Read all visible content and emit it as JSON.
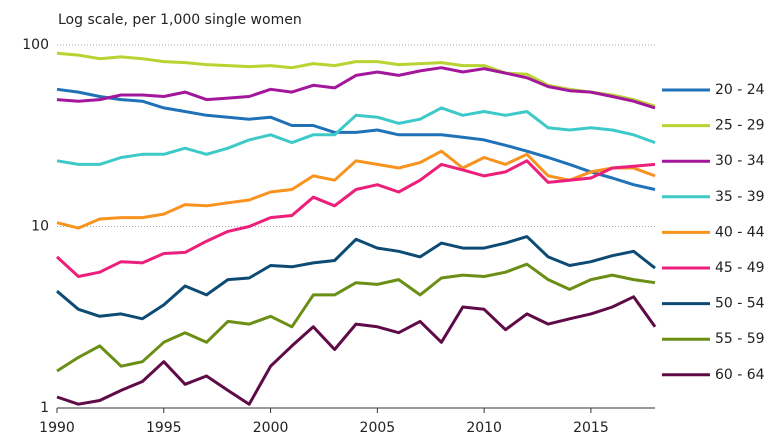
{
  "chart_data": {
    "type": "line",
    "ylabel": "Log scale, per 1,000 single women",
    "x": [
      1990,
      1991,
      1992,
      1993,
      1994,
      1995,
      1996,
      1997,
      1998,
      1999,
      2000,
      2001,
      2002,
      2003,
      2004,
      2005,
      2006,
      2007,
      2008,
      2009,
      2010,
      2011,
      2012,
      2013,
      2014,
      2015,
      2016,
      2017,
      2018
    ],
    "xlim": [
      1990,
      2018
    ],
    "xticks": [
      1990,
      1995,
      2000,
      2005,
      2010,
      2015
    ],
    "ylim": [
      1,
      100
    ],
    "yticks": [
      1,
      10,
      100
    ],
    "log_y": true,
    "grid": true,
    "legend": "right",
    "series": [
      {
        "name": "20 - 24",
        "color": "#1f72b8",
        "values": [
          57,
          55,
          52,
          50,
          49,
          45,
          43,
          41,
          40,
          39,
          40,
          36,
          36,
          33,
          33,
          34,
          32,
          32,
          32,
          31,
          30,
          28,
          26,
          24,
          22,
          20,
          18.5,
          17,
          16
        ]
      },
      {
        "name": "25 - 29",
        "color": "#b7d432",
        "values": [
          90,
          88,
          84,
          86,
          84,
          81,
          80,
          78,
          77,
          76,
          77,
          75,
          79,
          77,
          81,
          81,
          78,
          79,
          80,
          77,
          77,
          70,
          69,
          60,
          57,
          55,
          53,
          50,
          46
        ]
      },
      {
        "name": "30 - 34",
        "color": "#a3179c",
        "values": [
          50,
          49,
          50,
          53,
          53,
          52,
          55,
          50,
          51,
          52,
          57,
          55,
          60,
          58,
          68,
          71,
          68,
          72,
          75,
          71,
          74,
          70,
          66,
          59,
          56,
          55,
          52,
          49,
          45
        ]
      },
      {
        "name": "35 - 39",
        "color": "#3ec9c9",
        "values": [
          23,
          22,
          22,
          24,
          25,
          25,
          27,
          25,
          27,
          30,
          32,
          29,
          32,
          32,
          41,
          40,
          37,
          39,
          45,
          41,
          43,
          41,
          43,
          35,
          34,
          35,
          34,
          32,
          29
        ]
      },
      {
        "name": "40 - 44",
        "color": "#f7931e",
        "values": [
          10.5,
          9.8,
          11,
          11.2,
          11.2,
          11.7,
          13.2,
          13,
          13.5,
          14,
          15.5,
          16,
          19,
          18,
          23,
          22,
          21,
          22.5,
          26,
          21,
          24,
          22,
          25,
          19,
          18,
          20,
          21,
          21,
          19
        ]
      },
      {
        "name": "45 - 49",
        "color": "#ec1f7b",
        "values": [
          6.8,
          5.3,
          5.6,
          6.4,
          6.3,
          7.1,
          7.2,
          8.3,
          9.4,
          10,
          11.2,
          11.5,
          14.5,
          13,
          16,
          17,
          15.5,
          18,
          22,
          20.5,
          19,
          20,
          23,
          17.5,
          18,
          18.5,
          21,
          21.5,
          22
        ]
      },
      {
        "name": "50 - 54",
        "color": "#0e4b74",
        "values": [
          4.4,
          3.5,
          3.2,
          3.3,
          3.1,
          3.7,
          4.7,
          4.2,
          5.1,
          5.2,
          6.1,
          6,
          6.3,
          6.5,
          8.5,
          7.6,
          7.3,
          6.8,
          8.1,
          7.6,
          7.6,
          8.1,
          8.8,
          6.8,
          6.1,
          6.4,
          6.9,
          7.3,
          5.9
        ]
      },
      {
        "name": "55 - 59",
        "color": "#6b8f16",
        "values": [
          1.6,
          1.9,
          2.2,
          1.7,
          1.8,
          2.3,
          2.6,
          2.3,
          3,
          2.9,
          3.2,
          2.8,
          4.2,
          4.2,
          4.9,
          4.8,
          5.1,
          4.2,
          5.2,
          5.4,
          5.3,
          5.6,
          6.2,
          5.1,
          4.5,
          5.1,
          5.4,
          5.1,
          4.9
        ]
      },
      {
        "name": "60 - 64",
        "color": "#5e0b47",
        "values": [
          1.15,
          1.05,
          1.1,
          1.25,
          1.4,
          1.8,
          1.35,
          1.5,
          1.25,
          1.05,
          1.7,
          2.2,
          2.8,
          2.1,
          2.9,
          2.8,
          2.6,
          3.0,
          2.3,
          3.6,
          3.5,
          2.7,
          3.3,
          2.9,
          3.1,
          3.3,
          3.6,
          4.1,
          2.8
        ]
      }
    ]
  }
}
